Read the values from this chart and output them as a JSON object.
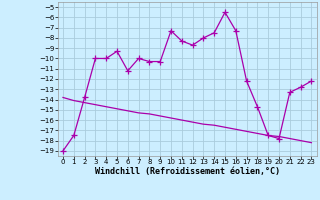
{
  "xlabel": "Windchill (Refroidissement éolien,°C)",
  "background_color": "#cceeff",
  "grid_color": "#aaccdd",
  "line_color": "#aa00aa",
  "x_data": [
    0,
    1,
    2,
    3,
    4,
    5,
    6,
    7,
    8,
    9,
    10,
    11,
    12,
    13,
    14,
    15,
    16,
    17,
    18,
    19,
    20,
    21,
    22,
    23
  ],
  "y_jagged": [
    -19,
    -17.5,
    -13.8,
    -10.0,
    -10.0,
    -9.3,
    -11.2,
    -10.0,
    -10.3,
    -10.3,
    -7.3,
    -8.3,
    -8.7,
    -8.0,
    -7.5,
    -5.5,
    -7.3,
    -12.2,
    -14.7,
    -17.5,
    -17.8,
    -13.3,
    -12.8,
    -12.2
  ],
  "y_trend": [
    -13.8,
    -14.1,
    -14.3,
    -14.5,
    -14.7,
    -14.9,
    -15.1,
    -15.3,
    -15.4,
    -15.6,
    -15.8,
    -16.0,
    -16.2,
    -16.4,
    -16.5,
    -16.7,
    -16.9,
    -17.1,
    -17.3,
    -17.5,
    -17.6,
    -17.8,
    -18.0,
    -18.2
  ],
  "ylim": [
    -19.5,
    -4.5
  ],
  "xlim": [
    -0.5,
    23.5
  ],
  "yticks": [
    -5,
    -6,
    -7,
    -8,
    -9,
    -10,
    -11,
    -12,
    -13,
    -14,
    -15,
    -16,
    -17,
    -18,
    -19
  ],
  "xticks": [
    0,
    1,
    2,
    3,
    4,
    5,
    6,
    7,
    8,
    9,
    10,
    11,
    12,
    13,
    14,
    15,
    16,
    17,
    18,
    19,
    20,
    21,
    22,
    23
  ],
  "marker": "+",
  "markersize": 4,
  "linewidth": 0.9,
  "tick_fontsize": 5.0,
  "xlabel_fontsize": 6.0
}
